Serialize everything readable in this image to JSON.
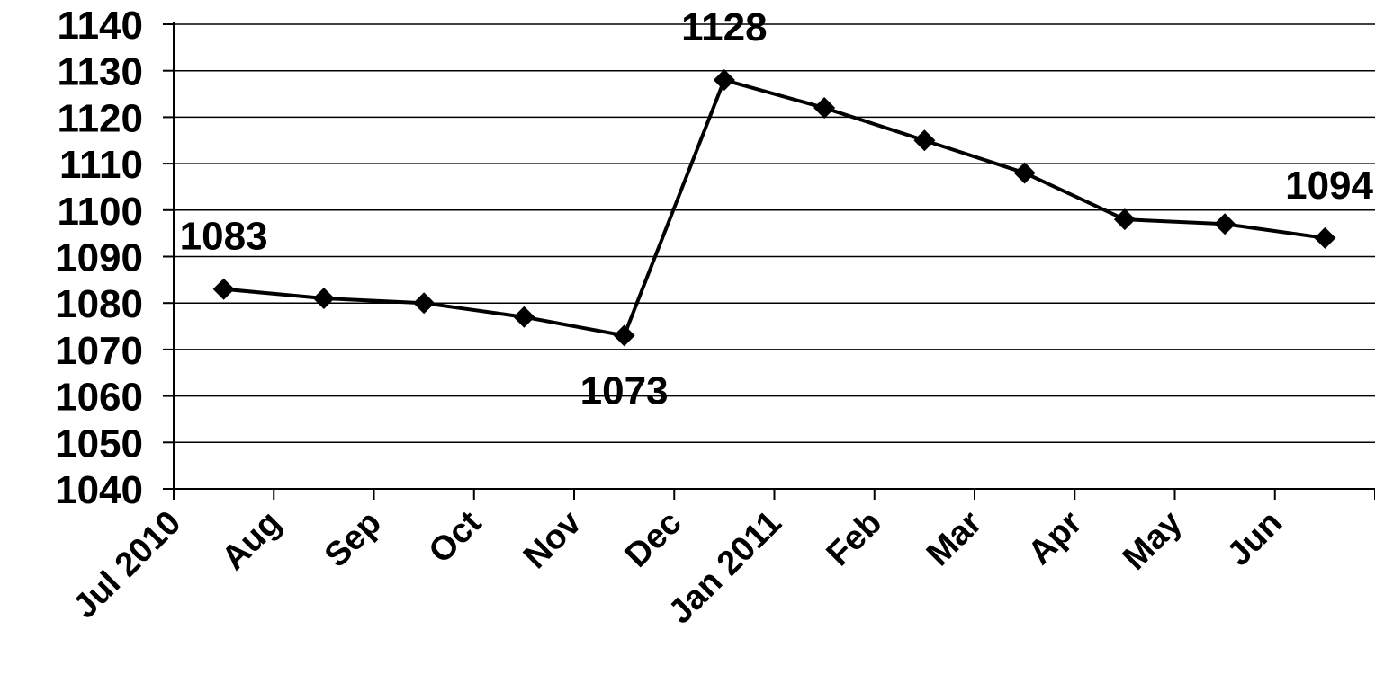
{
  "chart_data": {
    "type": "line",
    "categories": [
      "Jul 2010",
      "Aug",
      "Sep",
      "Oct",
      "Nov",
      "Dec",
      "Jan 2011",
      "Feb",
      "Mar",
      "Apr",
      "May",
      "Jun"
    ],
    "series": [
      {
        "values": [
          1083,
          1081,
          1080,
          1077,
          1073,
          1128,
          1122,
          1115,
          1108,
          1098,
          1097,
          1094
        ]
      }
    ],
    "ylim": [
      1040,
      1140
    ],
    "yticks": [
      1040,
      1050,
      1060,
      1070,
      1080,
      1090,
      1100,
      1110,
      1120,
      1130,
      1140
    ],
    "grid": true,
    "marker": "diamond",
    "line_color": "#000000",
    "data_labels": [
      {
        "index": 0,
        "text": "1083",
        "position": "above"
      },
      {
        "index": 4,
        "text": "1073",
        "position": "below"
      },
      {
        "index": 5,
        "text": "1128",
        "position": "above"
      },
      {
        "index": 11,
        "text": "1094",
        "position": "above"
      }
    ]
  }
}
